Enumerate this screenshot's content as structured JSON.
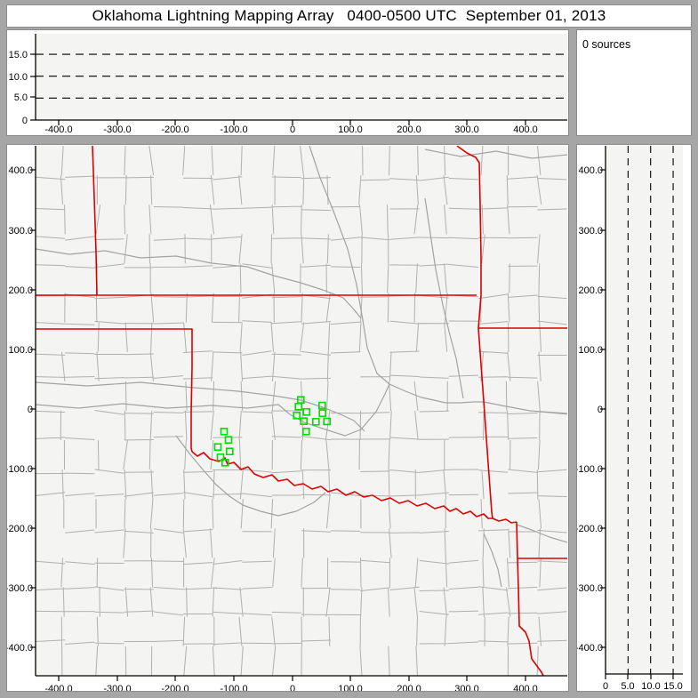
{
  "window": {
    "title": "Oklahoma Lightning Mapping Array   0400-0500 UTC  September 01, 2013"
  },
  "sources_panel": {
    "label": "0 sources"
  },
  "axes": {
    "ew_labels": [
      "-400.0",
      "-300.0",
      "-200.0",
      "-100.0",
      "0",
      "100.0",
      "200.0",
      "300.0",
      "400.0"
    ],
    "ns_labels": [
      "400.0",
      "300.0",
      "200.0",
      "100.0",
      "0",
      "-100.0",
      "-200.0",
      "-300.0",
      "-400.0"
    ],
    "alt_labels_top": [
      "15.0",
      "10.0",
      "5.0",
      "0"
    ],
    "alt_labels_right": [
      "0",
      "5.0",
      "10.0",
      "15.0"
    ],
    "alt_dash_levels_km": [
      5,
      10,
      15
    ]
  },
  "stations": {
    "marker": "open-square",
    "sites_km": [
      [
        14.8,
        15.3
      ],
      [
        10.8,
        4.0
      ],
      [
        7.8,
        -10.9
      ],
      [
        24.5,
        -4.9
      ],
      [
        20.0,
        -20.4
      ],
      [
        23.9,
        -37.6
      ],
      [
        40.7,
        -21.3
      ],
      [
        51.4,
        6.0
      ],
      [
        52.0,
        -7.0
      ],
      [
        59.6,
        -20.8
      ],
      [
        -116.8,
        -37.6
      ],
      [
        -109.1,
        -51.6
      ],
      [
        -127.4,
        -63.5
      ],
      [
        -107.2,
        -71.0
      ],
      [
        -122.9,
        -80.8
      ],
      [
        -114.8,
        -89.7
      ]
    ]
  },
  "colors": {
    "state_border": "#dd0000",
    "county_line": "#b0b0b0",
    "river": "#a3a3a3",
    "station": "#00dd00",
    "plot_bg": "#f4f4f2",
    "frame": "#a6a6a6",
    "axis": "#000000"
  }
}
